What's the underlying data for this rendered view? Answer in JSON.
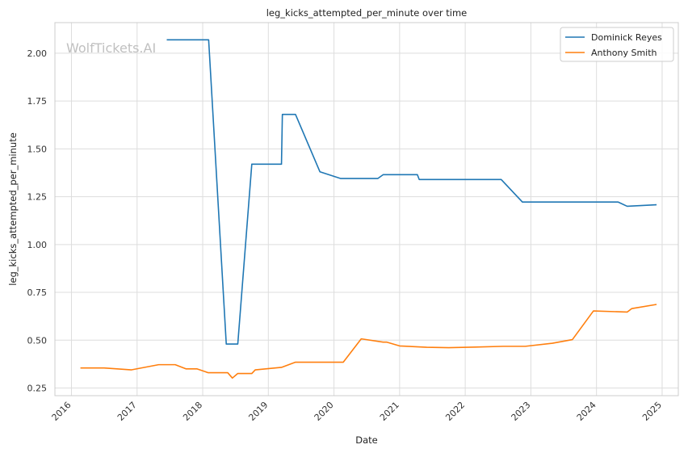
{
  "chart_data": {
    "type": "line",
    "title": "leg_kicks_attempted_per_minute over time",
    "xlabel": "Date",
    "ylabel": "leg_kicks_attempted_per_minute",
    "watermark": "WolfTickets.AI",
    "xlim": [
      "2015-10-01",
      "2025-04-01"
    ],
    "ylim": [
      0.21,
      2.16
    ],
    "xticks": [
      "2016",
      "2017",
      "2018",
      "2019",
      "2020",
      "2021",
      "2022",
      "2023",
      "2024",
      "2025"
    ],
    "yticks": [
      "0.25",
      "0.50",
      "0.75",
      "1.00",
      "1.25",
      "1.50",
      "1.75",
      "2.00"
    ],
    "grid": true,
    "legend_position": "top-right",
    "series": [
      {
        "name": "Dominick Reyes",
        "color": "#1f77b4",
        "points": [
          [
            "2017-06-15",
            2.07
          ],
          [
            "2018-02-03",
            2.07
          ],
          [
            "2018-05-12",
            0.48
          ],
          [
            "2018-07-15",
            0.48
          ],
          [
            "2018-10-01",
            1.42
          ],
          [
            "2019-03-15",
            1.42
          ],
          [
            "2019-03-20",
            1.68
          ],
          [
            "2019-06-01",
            1.68
          ],
          [
            "2019-10-15",
            1.38
          ],
          [
            "2020-02-08",
            1.345
          ],
          [
            "2020-09-01",
            1.345
          ],
          [
            "2020-10-01",
            1.365
          ],
          [
            "2021-04-10",
            1.365
          ],
          [
            "2021-04-20",
            1.34
          ],
          [
            "2022-07-20",
            1.34
          ],
          [
            "2022-11-15",
            1.222
          ],
          [
            "2024-05-01",
            1.222
          ],
          [
            "2024-06-20",
            1.2
          ],
          [
            "2024-12-01",
            1.208
          ]
        ]
      },
      {
        "name": "Anthony Smith",
        "color": "#ff7f0e",
        "points": [
          [
            "2016-02-20",
            0.355
          ],
          [
            "2016-07-01",
            0.355
          ],
          [
            "2016-12-01",
            0.345
          ],
          [
            "2017-05-01",
            0.372
          ],
          [
            "2017-08-01",
            0.372
          ],
          [
            "2017-10-01",
            0.35
          ],
          [
            "2017-12-01",
            0.35
          ],
          [
            "2018-02-01",
            0.33
          ],
          [
            "2018-05-20",
            0.33
          ],
          [
            "2018-06-15",
            0.302
          ],
          [
            "2018-07-15",
            0.326
          ],
          [
            "2018-10-01",
            0.326
          ],
          [
            "2018-10-20",
            0.345
          ],
          [
            "2019-03-15",
            0.358
          ],
          [
            "2019-06-01",
            0.385
          ],
          [
            "2020-02-22",
            0.385
          ],
          [
            "2020-06-01",
            0.507
          ],
          [
            "2020-10-01",
            0.49
          ],
          [
            "2020-10-20",
            0.49
          ],
          [
            "2021-01-01",
            0.47
          ],
          [
            "2021-06-01",
            0.463
          ],
          [
            "2021-10-01",
            0.461
          ],
          [
            "2022-03-01",
            0.464
          ],
          [
            "2022-08-01",
            0.468
          ],
          [
            "2022-12-01",
            0.468
          ],
          [
            "2023-05-01",
            0.484
          ],
          [
            "2023-08-20",
            0.503
          ],
          [
            "2023-12-15",
            0.653
          ],
          [
            "2024-06-20",
            0.647
          ],
          [
            "2024-07-15",
            0.665
          ],
          [
            "2024-12-01",
            0.687
          ]
        ]
      }
    ]
  }
}
